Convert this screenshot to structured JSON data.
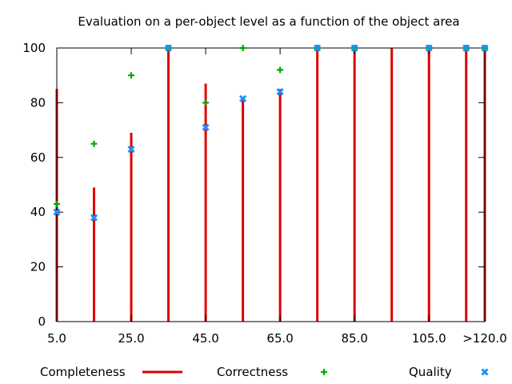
{
  "chart_data": {
    "type": "bar",
    "title": "Evaluation on a per-object level as a function of the object area",
    "xlabel": "",
    "ylabel": "",
    "x_ticks": [
      "5.0",
      "25.0",
      "45.0",
      "65.0",
      "85.0",
      "105.0",
      ">120.0"
    ],
    "y_ticks": [
      "0",
      "20",
      "40",
      "60",
      "80",
      "100"
    ],
    "ylim": [
      0,
      100
    ],
    "xlim": [
      5,
      120
    ],
    "grid": false,
    "legend_position": "bottom",
    "x": [
      5,
      15,
      25,
      35,
      45,
      55,
      65,
      75,
      85,
      95,
      105,
      115,
      120
    ],
    "series": [
      {
        "name": "Completeness",
        "style": "impulses",
        "color": "#dd0000",
        "values": [
          85,
          49,
          69,
          100,
          87,
          82,
          85,
          100,
          100,
          100,
          100,
          100,
          100
        ]
      },
      {
        "name": "Correctness",
        "style": "plus",
        "color": "#00aa00",
        "values": [
          43,
          65,
          90,
          100,
          80,
          100,
          92,
          100,
          100,
          null,
          100,
          100,
          100
        ]
      },
      {
        "name": "Quality",
        "style": "cross",
        "color": "#1e90ff",
        "values": [
          40,
          38,
          63,
          100,
          71,
          81.5,
          84,
          100,
          100,
          null,
          100,
          100,
          100
        ]
      }
    ]
  }
}
